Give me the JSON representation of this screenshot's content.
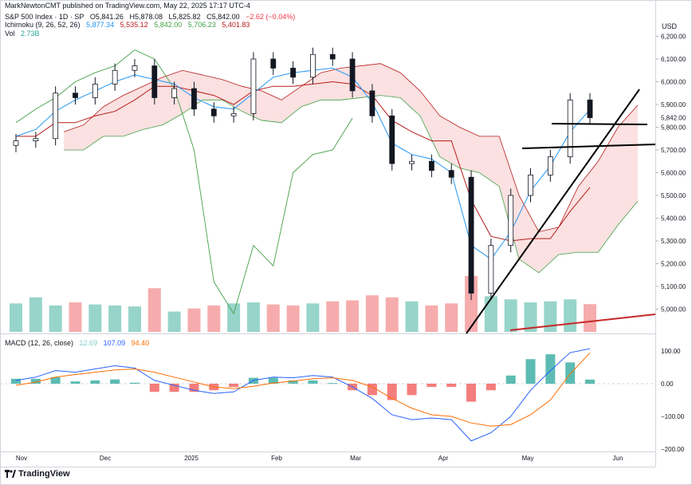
{
  "publisher_line": "MarkNewtonCMT published on TradingView.com, May 22, 2025 17:17 UTC-4",
  "instrument": {
    "name": "S&P 500 Index · 1D · SP",
    "open": "O5,841.26",
    "high": "H5,878.08",
    "low": "L5,825.82",
    "close": "C5,842.00",
    "change": "−2.62 (−0.04%)"
  },
  "ichimoku": {
    "label": "Ichimoku (9, 26, 52, 26)",
    "conversion": "5,877.34",
    "base": "5,535.12",
    "lagging": "5,842.00",
    "span_a": "5,706.23",
    "span_b": "5,401.83",
    "colors": {
      "conversion": "#2196f3",
      "base": "#b71c1c",
      "lagging": "#43a047",
      "span_a": "#43a047",
      "span_b": "#b71c1c"
    }
  },
  "volume": {
    "label": "Vol",
    "value": "2.73B"
  },
  "macd": {
    "label": "MACD (12, 26, close)",
    "histogram": "12.69",
    "macd": "107.09",
    "signal": "94.40",
    "colors": {
      "histogram": "#26a69a",
      "macd": "#2962ff",
      "signal": "#ff6d00"
    }
  },
  "currency": "USD",
  "current_price_tag": "5,842.00",
  "logo_text": "TradingView",
  "chart_data": [
    {
      "type": "candlestick",
      "title": "S&P 500 Index · 1D · SP",
      "x_ticks": [
        "Nov",
        "Dec",
        "2025",
        "Feb",
        "Mar",
        "Apr",
        "May",
        "Jun"
      ],
      "y_ticks": [
        "6,200.00",
        "6,100.00",
        "6,000.00",
        "5,900.00",
        "5,800.00",
        "5,700.00",
        "5,600.00",
        "5,500.00",
        "5,400.00",
        "5,300.00",
        "5,200.00",
        "5,100.00",
        "5,000.00"
      ],
      "ylim": [
        4930,
        6265
      ],
      "x": [
        "Oct 28",
        "Nov 04",
        "Nov 11",
        "Nov 18",
        "Nov 25",
        "Dec 02",
        "Dec 09",
        "Dec 16",
        "Dec 23",
        "Dec 30",
        "Jan 06",
        "Jan 13",
        "Jan 21",
        "Jan 27",
        "Feb 03",
        "Feb 10",
        "Feb 18",
        "Feb 24",
        "Mar 03",
        "Mar 10",
        "Mar 17",
        "Mar 24",
        "Mar 31",
        "Apr 07",
        "Apr 14",
        "Apr 21",
        "Apr 28",
        "May 05",
        "May 12",
        "May 19"
      ],
      "series": [
        {
          "name": "",
          "values": [
            5740,
            5750,
            5950,
            5930,
            5990,
            6050,
            6070,
            5930,
            5970,
            5880,
            5850,
            5860,
            6100,
            6060,
            6020,
            6120,
            6100,
            5960,
            5850,
            5640,
            5650,
            5610,
            5580,
            5070,
            5280,
            5500,
            5590,
            5670,
            5920,
            5842
          ]
        }
      ],
      "ichimoku_conversion": [
        5760,
        5790,
        5870,
        5920,
        5960,
        6000,
        6030,
        6010,
        5990,
        5930,
        5890,
        5880,
        5950,
        6020,
        6040,
        6050,
        6060,
        6020,
        5910,
        5730,
        5680,
        5660,
        5600,
        5280,
        5220,
        5340,
        5520,
        5630,
        5780,
        5877.34
      ],
      "ichimoku_base": [
        5760,
        5760,
        5820,
        5820,
        5850,
        5870,
        5920,
        5980,
        5980,
        5960,
        5940,
        5900,
        5960,
        5980,
        5980,
        5990,
        6000,
        5990,
        5940,
        5830,
        5780,
        5740,
        5740,
        5480,
        5320,
        5300,
        5310,
        5310,
        5430,
        5535.12
      ],
      "lagging_span": [
        5820,
        5880,
        5930,
        6000,
        6040,
        6070,
        6140,
        6100,
        5970,
        5700,
        5120,
        4980,
        5280,
        5190,
        5600,
        5680,
        5700,
        5840
      ],
      "volume_billions": [
        2.8,
        3.4,
        2.6,
        2.9,
        2.7,
        2.6,
        2.5,
        4.3,
        2.0,
        2.3,
        2.6,
        2.8,
        2.9,
        2.7,
        2.6,
        2.8,
        3.0,
        3.1,
        3.6,
        3.4,
        3.0,
        2.6,
        2.8,
        5.5,
        3.5,
        3.2,
        2.9,
        3.0,
        3.2,
        2.73
      ]
    },
    {
      "type": "line",
      "title": "MACD (12, 26, close)",
      "y_ticks": [
        "100.00",
        "0.00",
        "−100.00",
        "−200.00"
      ],
      "ylim": [
        -205,
        135
      ],
      "x": [
        "Oct 28",
        "Nov 04",
        "Nov 11",
        "Nov 18",
        "Nov 25",
        "Dec 02",
        "Dec 09",
        "Dec 16",
        "Dec 23",
        "Dec 30",
        "Jan 06",
        "Jan 13",
        "Jan 21",
        "Jan 27",
        "Feb 03",
        "Feb 10",
        "Feb 18",
        "Feb 24",
        "Mar 03",
        "Mar 10",
        "Mar 17",
        "Mar 24",
        "Mar 31",
        "Apr 07",
        "Apr 14",
        "Apr 21",
        "Apr 28",
        "May 05",
        "May 12",
        "May 19"
      ],
      "series": [
        {
          "name": "",
          "values": [
            10,
            20,
            40,
            35,
            45,
            55,
            48,
            10,
            -5,
            -20,
            -30,
            -25,
            10,
            20,
            18,
            25,
            20,
            -10,
            -45,
            -95,
            -110,
            -105,
            -110,
            -175,
            -150,
            -100,
            -20,
            40,
            95,
            107.09
          ]
        },
        {
          "name": "",
          "values": [
            -5,
            5,
            20,
            28,
            35,
            42,
            45,
            35,
            20,
            5,
            -10,
            -15,
            -8,
            2,
            8,
            15,
            18,
            10,
            -10,
            -45,
            -75,
            -95,
            -100,
            -120,
            -130,
            -125,
            -95,
            -50,
            30,
            94.4
          ]
        },
        {
          "name": "",
          "values": [
            15,
            15,
            20,
            7,
            10,
            13,
            3,
            -25,
            -25,
            -25,
            -20,
            -10,
            18,
            18,
            10,
            10,
            2,
            -20,
            -35,
            -50,
            -35,
            -10,
            -10,
            -55,
            -20,
            25,
            75,
            90,
            65,
            12.69
          ]
        }
      ]
    }
  ]
}
